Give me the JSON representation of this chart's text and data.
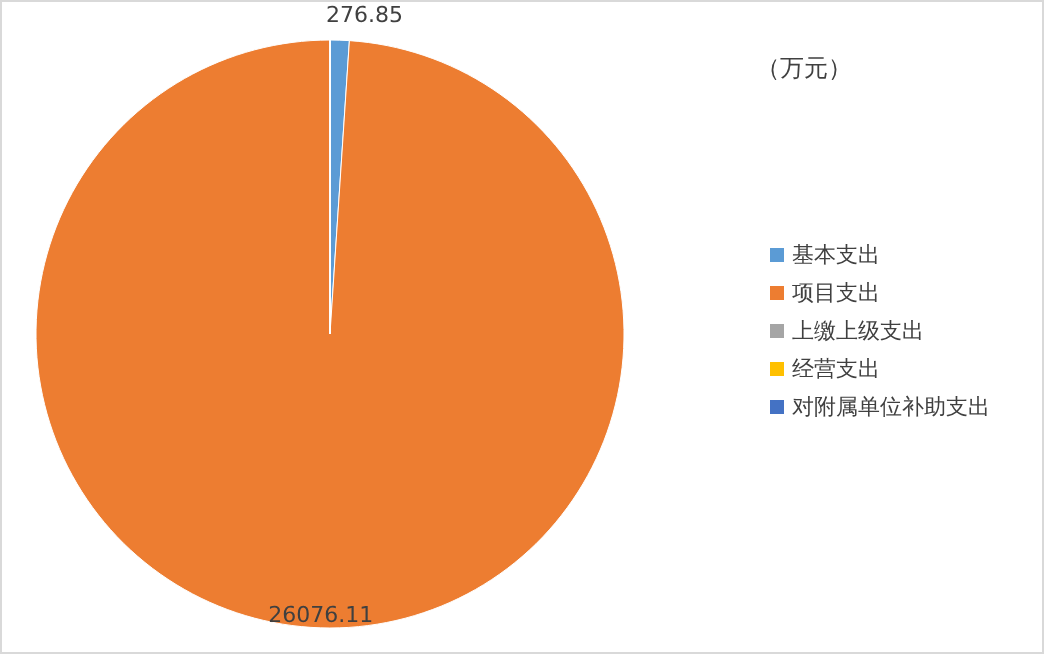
{
  "chart_data": {
    "type": "pie",
    "categories": [
      "基本支出",
      "项目支出",
      "上缴上级支出",
      "经营支出",
      "对附属单位补助支出"
    ],
    "values": [
      276.85,
      26076.11,
      0,
      0,
      0
    ],
    "colors": [
      "#5b9bd5",
      "#ed7d31",
      "#a5a5a5",
      "#ffc000",
      "#4472c4"
    ],
    "value_labels": [
      "276.85",
      "26076.11",
      null,
      null,
      null
    ],
    "annotations": [
      "（万元）"
    ],
    "legend": "right"
  }
}
